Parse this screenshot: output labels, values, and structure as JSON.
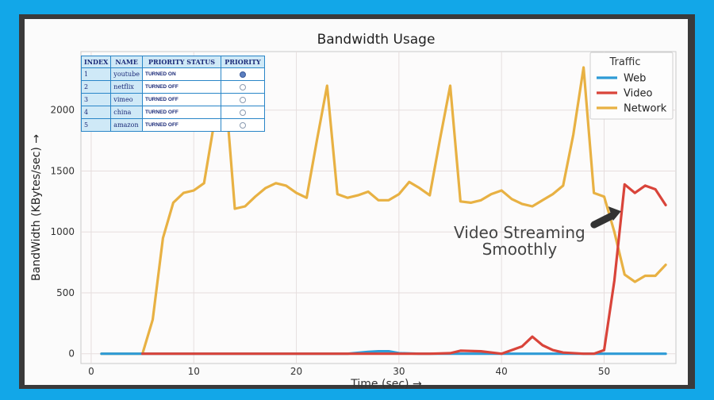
{
  "chart_data": {
    "type": "line",
    "title": "Bandwidth Usage",
    "xlabel": "Time (sec) →",
    "ylabel": "BandWidth (KBytes/sec) →",
    "xlim": [
      -1,
      57
    ],
    "ylim": [
      -80,
      2480
    ],
    "xticks": [
      0,
      10,
      20,
      30,
      40,
      50
    ],
    "yticks": [
      0,
      500,
      1000,
      1500,
      2000
    ],
    "grid": true,
    "legend": {
      "title": "Traffic",
      "position": "top-right"
    },
    "series": [
      {
        "name": "Web",
        "color": "#2e9bd6",
        "x": [
          1,
          5,
          25,
          27,
          28,
          29,
          30,
          32,
          35,
          40,
          45,
          50,
          56
        ],
        "y": [
          0,
          0,
          0,
          15,
          20,
          20,
          5,
          0,
          0,
          0,
          0,
          0,
          0
        ]
      },
      {
        "name": "Video",
        "color": "#d9443a",
        "x": [
          5,
          10,
          15,
          20,
          25,
          30,
          33,
          35,
          36,
          38,
          40,
          41,
          42,
          43,
          44,
          45,
          46,
          48,
          49,
          50,
          51,
          52,
          53,
          54,
          55,
          56
        ],
        "y": [
          0,
          0,
          0,
          0,
          0,
          0,
          0,
          5,
          25,
          20,
          0,
          30,
          60,
          140,
          70,
          30,
          10,
          0,
          0,
          30,
          600,
          1390,
          1320,
          1380,
          1350,
          1220
        ]
      },
      {
        "name": "Network",
        "color": "#e8b143",
        "x": [
          1,
          5,
          6,
          7,
          8,
          9,
          10,
          11,
          12,
          13,
          14,
          15,
          16,
          17,
          18,
          19,
          20,
          21,
          22,
          23,
          24,
          25,
          26,
          27,
          28,
          29,
          30,
          31,
          32,
          33,
          34,
          35,
          36,
          37,
          38,
          39,
          40,
          41,
          42,
          43,
          44,
          45,
          46,
          47,
          48,
          49,
          50,
          51,
          52,
          53,
          54,
          55,
          56
        ],
        "y": [
          0,
          0,
          280,
          950,
          1240,
          1320,
          1340,
          1400,
          1900,
          2250,
          1190,
          1210,
          1290,
          1360,
          1400,
          1380,
          1320,
          1280,
          1750,
          2200,
          1310,
          1280,
          1300,
          1330,
          1260,
          1260,
          1310,
          1410,
          1360,
          1300,
          1760,
          2200,
          1250,
          1240,
          1260,
          1310,
          1340,
          1270,
          1230,
          1210,
          1260,
          1310,
          1380,
          1800,
          2350,
          1320,
          1290,
          1000,
          650,
          590,
          640,
          640,
          730
        ]
      }
    ],
    "annotation": {
      "text": [
        "Video Streaming",
        "Smoothly"
      ],
      "x": 51.5,
      "y": 1170
    }
  },
  "priority_table": {
    "headers": [
      "INDEX",
      "NAME",
      "PRIORITY STATUS",
      "PRIORITY"
    ],
    "rows": [
      {
        "index": "1",
        "name": "youtube",
        "status": "TURNED ON",
        "selected": true
      },
      {
        "index": "2",
        "name": "netflix",
        "status": "TURNED OFF",
        "selected": false
      },
      {
        "index": "3",
        "name": "vimeo",
        "status": "TURNED OFF",
        "selected": false
      },
      {
        "index": "4",
        "name": "china",
        "status": "TURNED OFF",
        "selected": false
      },
      {
        "index": "5",
        "name": "amazon",
        "status": "TURNED OFF",
        "selected": false
      }
    ]
  }
}
